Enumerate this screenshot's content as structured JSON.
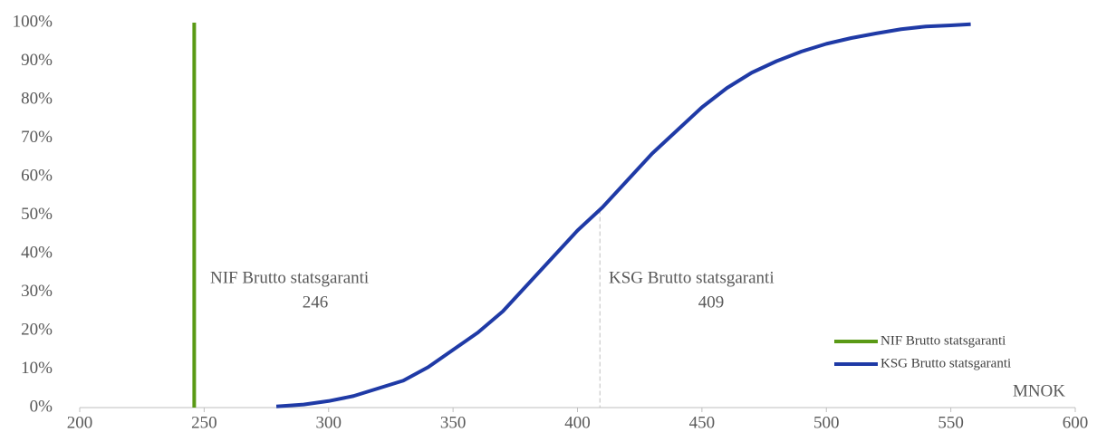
{
  "chart_data": {
    "type": "line",
    "x_label": "MNOK",
    "xlim": [
      200,
      600
    ],
    "xticks": [
      200,
      250,
      300,
      350,
      400,
      450,
      500,
      550,
      600
    ],
    "ylim": [
      0,
      100
    ],
    "yticks": [
      {
        "value": 0,
        "label": "0%"
      },
      {
        "value": 10,
        "label": "10%"
      },
      {
        "value": 20,
        "label": "20%"
      },
      {
        "value": 30,
        "label": "30%"
      },
      {
        "value": 40,
        "label": "40%"
      },
      {
        "value": 50,
        "label": "50%"
      },
      {
        "value": 60,
        "label": "60%"
      },
      {
        "value": 70,
        "label": "70%"
      },
      {
        "value": 80,
        "label": "80%"
      },
      {
        "value": 90,
        "label": "90%"
      },
      {
        "value": 100,
        "label": "100%"
      }
    ],
    "legend": "lower right",
    "series": [
      {
        "name": "NIF Brutto statsgaranti",
        "color": "#5a9a16",
        "x": [
          246,
          246
        ],
        "values": [
          0,
          100
        ]
      },
      {
        "name": "KSG Brutto statsgaranti",
        "color": "#1f3aa6",
        "x": [
          279,
          290,
          300,
          310,
          320,
          330,
          340,
          350,
          360,
          370,
          380,
          390,
          400,
          410,
          420,
          430,
          440,
          450,
          460,
          470,
          480,
          490,
          500,
          510,
          520,
          530,
          540,
          550,
          558
        ],
        "values": [
          0.3,
          0.8,
          1.7,
          3,
          5,
          7,
          10.5,
          15,
          19.5,
          25,
          32,
          39,
          46,
          52,
          59,
          66,
          72,
          78,
          83,
          87,
          90,
          92.5,
          94.5,
          96,
          97.2,
          98.3,
          99,
          99.3,
          99.6
        ]
      }
    ],
    "annotations": [
      {
        "label": "NIF Brutto statsgaranti",
        "value": 246
      },
      {
        "label": "KSG Brutto statsgaranti",
        "value": 409
      }
    ]
  }
}
